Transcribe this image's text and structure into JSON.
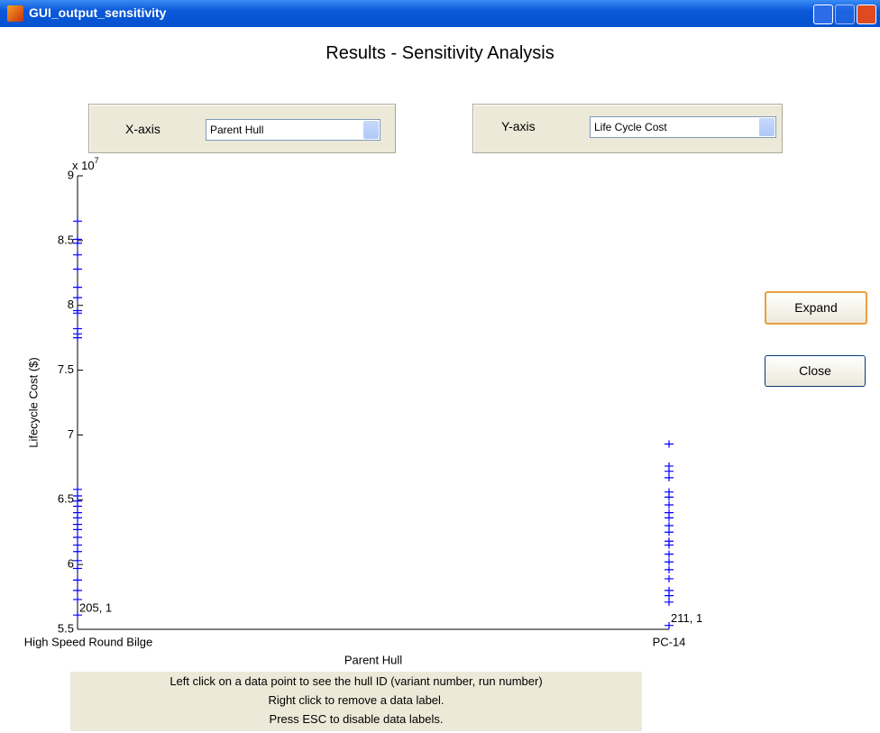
{
  "window": {
    "title": "GUI_output_sensitivity"
  },
  "heading": "Results - Sensitivity Analysis",
  "controls": {
    "x_label": "X-axis",
    "x_select": "Parent Hull",
    "y_label": "Y-axis",
    "y_select": "Life Cycle Cost"
  },
  "buttons": [
    "Expand",
    "Close"
  ],
  "instructions": [
    "Left click on a data point to see the hull ID (variant number, run number)",
    "Right click to remove a data label.",
    "Press ESC to disable data labels."
  ],
  "chart_data": {
    "type": "scatter",
    "xlabel": "Parent Hull",
    "ylabel": "Lifecycle Cost ($)",
    "y_multiplier": {
      "base": "x 10",
      "exponent": "7"
    },
    "categories": [
      "High Speed Round Bilge",
      "PC-14"
    ],
    "marker": "+",
    "series": [
      {
        "color": "#0000ff",
        "values": [
          8.65,
          8.51,
          8.48,
          8.39,
          8.28,
          8.14,
          8.06,
          7.96,
          7.94,
          7.82,
          7.78,
          7.75,
          6.58,
          6.53,
          6.49,
          6.45,
          6.4,
          6.36,
          6.31,
          6.27,
          6.21,
          6.15,
          6.1,
          6.03,
          5.97,
          5.88,
          5.8,
          5.73,
          5.61
        ]
      },
      {
        "color": "#0000ff",
        "values": [
          6.93,
          6.76,
          6.72,
          6.67,
          6.56,
          6.52,
          6.46,
          6.4,
          6.36,
          6.3,
          6.25,
          6.18,
          6.15,
          6.08,
          6.02,
          5.96,
          5.89,
          5.8,
          5.76,
          5.71,
          5.53
        ]
      }
    ],
    "annotations": [
      {
        "text": "205, 1",
        "x": "High Speed Round Bilge",
        "y": 5.61
      },
      {
        "text": "211, 1",
        "x": "PC-14",
        "y": 5.53
      }
    ],
    "ylim": [
      5.5,
      9
    ],
    "yticks": [
      5.5,
      6,
      6.5,
      7,
      7.5,
      8,
      8.5,
      9
    ]
  }
}
